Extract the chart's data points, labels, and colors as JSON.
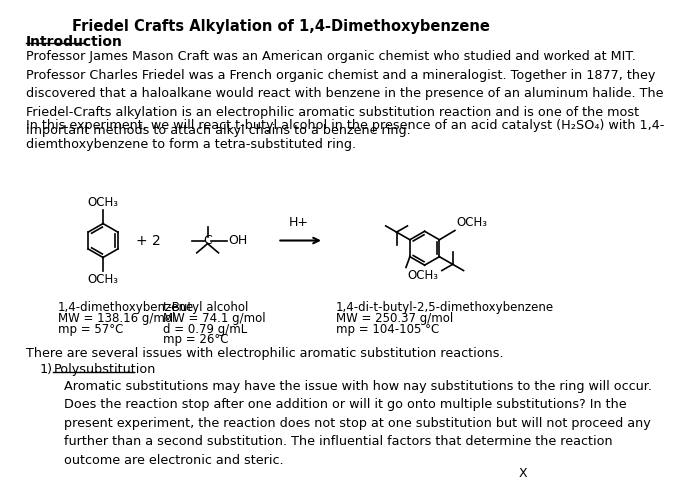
{
  "title": "Friedel Crafts Alkylation of 1,4-Dimethoxybenzene",
  "intro_heading": "Introduction",
  "intro_para1": "Professor James Mason Craft was an American organic chemist who studied and worked at MIT.\nProfessor Charles Friedel was a French organic chemist and a mineralogist. Together in 1877, they\ndiscovered that a haloalkane would react with benzene in the presence of an aluminum halide. The\nFriedel-Crafts alkylation is an electrophilic aromatic substitution reaction and is one of the most\nimportant methods to attach alkyl chains to a benzene ring.",
  "intro_para2": "In this experiment, we will react t-butyl alcohol in the presence of an acid catalyst (H₂SO₄) with 1,4-\ndiemthoxybenzene to form a tetra-substituted ring.",
  "reactant1_name": "1,4-dimethoxybenzene",
  "reactant1_mw": "MW = 138.16 g/mol",
  "reactant1_mp": "mp = 57°C",
  "reactant2_name": "t-Butyl alcohol",
  "reactant2_mw": "MW = 74.1 g/mol",
  "reactant2_d": "d = 0.79 g/mL",
  "reactant2_mp": "mp = 26°C",
  "product_name": "1,4-di-t-butyl-2,5-dimethoxybenzene",
  "product_mw": "MW = 250.37 g/mol",
  "product_mp": "mp = 104-105 °C",
  "poly_heading": "Polysubstitution",
  "poly_number": "1)",
  "poly_para": "Aromatic substitutions may have the issue with how nay substitutions to the ring will occur.\nDoes the reaction stop after one addition or will it go onto multiple substitutions? In the\npresent experiment, the reaction does not stop at one substitution but will not proceed any\nfurther than a second substitution. The influential factors that determine the reaction\noutcome are electronic and steric.",
  "issues_line": "There are several issues with electrophilic aromatic substitution reactions.",
  "x_label": "X",
  "bg_color": "#ffffff",
  "text_color": "#000000"
}
